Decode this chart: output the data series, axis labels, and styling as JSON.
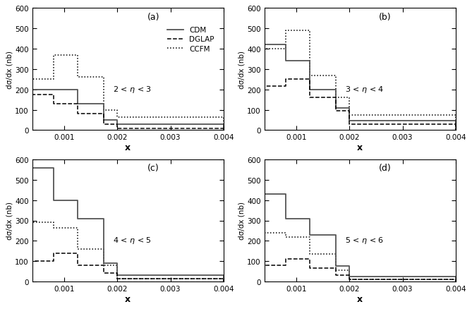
{
  "panels": [
    {
      "label": "(a)",
      "eta_range": "2 < $\\eta$ < 3",
      "cdm": [
        200,
        200,
        130,
        50,
        30
      ],
      "dglap": [
        175,
        130,
        80,
        30,
        10
      ],
      "ccfm": [
        250,
        370,
        260,
        100,
        65
      ]
    },
    {
      "label": "(b)",
      "eta_range": "3 < $\\eta$ < 4",
      "cdm": [
        420,
        340,
        200,
        110,
        45
      ],
      "dglap": [
        215,
        250,
        160,
        95,
        30
      ],
      "ccfm": [
        400,
        490,
        270,
        160,
        75
      ]
    },
    {
      "label": "(c)",
      "eta_range": "4 < $\\eta$ < 5",
      "cdm": [
        560,
        400,
        310,
        90,
        30
      ],
      "dglap": [
        100,
        140,
        80,
        40,
        15
      ],
      "ccfm": [
        290,
        265,
        160,
        80,
        15
      ]
    },
    {
      "label": "(d)",
      "eta_range": "5 < $\\eta$ < 6",
      "cdm": [
        430,
        310,
        230,
        75,
        25
      ],
      "dglap": [
        80,
        110,
        65,
        30,
        10
      ],
      "ccfm": [
        240,
        220,
        135,
        55,
        10
      ]
    }
  ],
  "x_edges": [
    0.0004,
    0.0008,
    0.00125,
    0.00175,
    0.002,
    0.004
  ],
  "xlim": [
    0.0004,
    0.004
  ],
  "ylim": [
    0,
    600
  ],
  "xticks": [
    0.001,
    0.002,
    0.003,
    0.004
  ],
  "yticks": [
    0,
    100,
    200,
    300,
    400,
    500,
    600
  ],
  "xlabel": "x",
  "ylabel": "dσ/dx (nb)"
}
